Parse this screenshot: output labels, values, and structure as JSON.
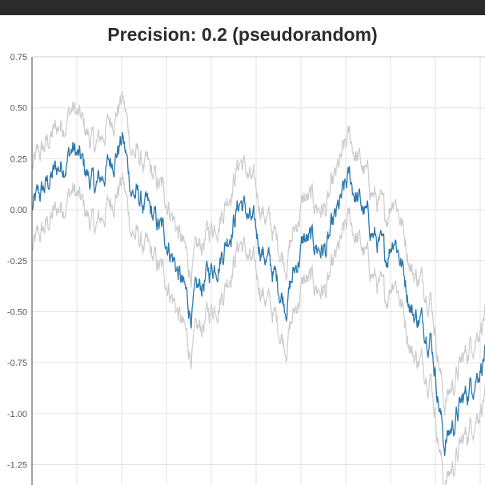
{
  "chart_data": {
    "type": "line",
    "title": "Precision: 0.2 (pseudorandom)",
    "xlabel": "",
    "ylabel": "",
    "ylim": [
      -1.35,
      0.75
    ],
    "y_ticks": [
      "0.75",
      "0.50",
      "0.25",
      "0.00",
      "-0.25",
      "-0.50",
      "-0.75",
      "-1.00",
      "-1.25"
    ],
    "y_tick_values": [
      0.75,
      0.5,
      0.25,
      0.0,
      -0.25,
      -0.5,
      -0.75,
      -1.0,
      -1.25
    ],
    "x_gridlines": 10,
    "grid": true,
    "band_offset": 0.2,
    "anchors_x": [
      0,
      0.04,
      0.09,
      0.14,
      0.2,
      0.22,
      0.3,
      0.35,
      0.38,
      0.42,
      0.46,
      0.52,
      0.56,
      0.6,
      0.65,
      0.7,
      0.74,
      0.78,
      0.8,
      0.84,
      0.88,
      0.91,
      0.95,
      0.99,
      1
    ],
    "anchors_y": [
      0.0,
      0.15,
      0.3,
      0.1,
      0.35,
      0.1,
      -0.15,
      -0.5,
      -0.35,
      -0.2,
      0.05,
      -0.25,
      -0.45,
      -0.15,
      -0.2,
      0.15,
      -0.05,
      -0.25,
      -0.1,
      -0.5,
      -0.6,
      -1.15,
      -0.95,
      -0.75,
      -0.7
    ],
    "series": [
      {
        "color": "#2c78ad"
      },
      {
        "color": "#cccccc"
      },
      {
        "color": "#cccccc"
      }
    ]
  }
}
